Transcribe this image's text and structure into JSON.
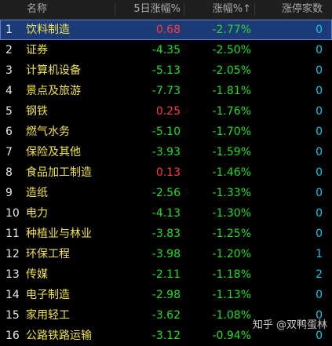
{
  "header": {
    "name": "名称",
    "five_day_change": "5日涨幅%",
    "change": "涨幅%↑",
    "limit_up_count": "涨停家数"
  },
  "rows": [
    {
      "index": "1",
      "name": "饮料制造",
      "five_day": "0.68",
      "change": "-2.77%",
      "limit_up": "0"
    },
    {
      "index": "2",
      "name": "证券",
      "five_day": "-4.35",
      "change": "-2.50%",
      "limit_up": "0"
    },
    {
      "index": "3",
      "name": "计算机设备",
      "five_day": "-5.13",
      "change": "-2.05%",
      "limit_up": "0"
    },
    {
      "index": "4",
      "name": "景点及旅游",
      "five_day": "-7.73",
      "change": "-1.81%",
      "limit_up": "0"
    },
    {
      "index": "5",
      "name": "钢铁",
      "five_day": "0.25",
      "change": "-1.76%",
      "limit_up": "0"
    },
    {
      "index": "6",
      "name": "燃气水务",
      "five_day": "-5.10",
      "change": "-1.70%",
      "limit_up": "0"
    },
    {
      "index": "7",
      "name": "保险及其他",
      "five_day": "-3.93",
      "change": "-1.59%",
      "limit_up": "0"
    },
    {
      "index": "8",
      "name": "食品加工制造",
      "five_day": "0.13",
      "change": "-1.46%",
      "limit_up": "0"
    },
    {
      "index": "9",
      "name": "造纸",
      "five_day": "-2.56",
      "change": "-1.33%",
      "limit_up": "0"
    },
    {
      "index": "10",
      "name": "电力",
      "five_day": "-4.13",
      "change": "-1.30%",
      "limit_up": "0"
    },
    {
      "index": "11",
      "name": "种植业与林业",
      "five_day": "-3.83",
      "change": "-1.25%",
      "limit_up": "0"
    },
    {
      "index": "12",
      "name": "环保工程",
      "five_day": "-3.98",
      "change": "-1.20%",
      "limit_up": "1"
    },
    {
      "index": "13",
      "name": "传媒",
      "five_day": "-2.11",
      "change": "-1.18%",
      "limit_up": "2"
    },
    {
      "index": "14",
      "name": "电子制造",
      "five_day": "-2.98",
      "change": "-1.13%",
      "limit_up": "0"
    },
    {
      "index": "15",
      "name": "家用轻工",
      "five_day": "-3.62",
      "change": "-1.08%",
      "limit_up": "0"
    },
    {
      "index": "16",
      "name": "公路铁路运输",
      "five_day": "-3.12",
      "change": "-0.94%",
      "limit_up": "0"
    }
  ],
  "selected_row": 0,
  "watermark": {
    "text": "知乎 @双鸭蛋林"
  },
  "colors": {
    "positive": "#ff3c3c",
    "negative": "#22dd22",
    "name": "#f0e34b",
    "limit_up": "#19c4e6",
    "selected_bg": "#1d3a78"
  }
}
